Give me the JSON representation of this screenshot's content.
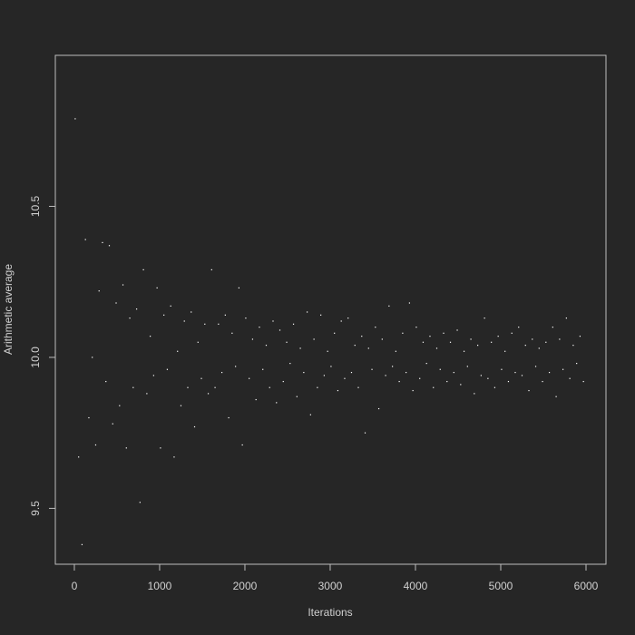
{
  "chart_data": {
    "type": "scatter",
    "xlabel": "Iterations",
    "ylabel": "Arithmetic average",
    "xlim": [
      -223,
      6234
    ],
    "ylim": [
      9.315,
      11.0
    ],
    "xticks": [
      0,
      1000,
      2000,
      3000,
      4000,
      5000,
      6000
    ],
    "yticks": [
      9.5,
      {
        "value": 10,
        "label": "10.0"
      },
      10.5
    ],
    "color": "#ffffff",
    "x": [
      10,
      50,
      90,
      130,
      170,
      210,
      250,
      290,
      330,
      370,
      410,
      450,
      490,
      530,
      570,
      610,
      650,
      690,
      730,
      770,
      810,
      850,
      890,
      930,
      970,
      1010,
      1050,
      1090,
      1130,
      1170,
      1210,
      1250,
      1290,
      1330,
      1370,
      1410,
      1450,
      1490,
      1530,
      1570,
      1610,
      1650,
      1690,
      1730,
      1770,
      1810,
      1850,
      1890,
      1930,
      1970,
      2010,
      2050,
      2090,
      2130,
      2170,
      2210,
      2250,
      2290,
      2330,
      2370,
      2410,
      2450,
      2490,
      2530,
      2570,
      2610,
      2650,
      2690,
      2730,
      2770,
      2810,
      2850,
      2890,
      2930,
      2970,
      3010,
      3050,
      3090,
      3130,
      3170,
      3210,
      3250,
      3290,
      3330,
      3370,
      3410,
      3450,
      3490,
      3530,
      3570,
      3610,
      3650,
      3690,
      3730,
      3770,
      3810,
      3850,
      3890,
      3930,
      3970,
      4010,
      4050,
      4090,
      4130,
      4170,
      4210,
      4250,
      4290,
      4330,
      4370,
      4410,
      4450,
      4490,
      4530,
      4570,
      4610,
      4650,
      4690,
      4730,
      4770,
      4810,
      4850,
      4890,
      4930,
      4970,
      5010,
      5050,
      5090,
      5130,
      5170,
      5210,
      5250,
      5290,
      5330,
      5370,
      5410,
      5450,
      5490,
      5530,
      5570,
      5610,
      5650,
      5690,
      5730,
      5770,
      5810,
      5850,
      5890,
      5930,
      5970
    ],
    "values": [
      10.79,
      9.67,
      9.38,
      10.39,
      9.8,
      10.0,
      9.71,
      10.22,
      10.38,
      9.92,
      10.37,
      9.78,
      10.18,
      9.84,
      10.24,
      9.7,
      10.13,
      9.9,
      10.16,
      9.52,
      10.29,
      9.88,
      10.07,
      9.94,
      10.23,
      9.7,
      10.14,
      9.96,
      10.17,
      9.67,
      10.02,
      9.84,
      10.12,
      9.9,
      10.15,
      9.77,
      10.05,
      9.93,
      10.11,
      9.88,
      10.29,
      9.9,
      10.11,
      9.95,
      10.14,
      9.8,
      10.08,
      9.97,
      10.23,
      9.71,
      10.13,
      9.93,
      10.06,
      9.86,
      10.1,
      9.96,
      10.04,
      9.9,
      10.12,
      9.85,
      10.09,
      9.92,
      10.05,
      9.98,
      10.11,
      9.87,
      10.03,
      9.95,
      10.15,
      9.81,
      10.06,
      9.9,
      10.14,
      9.94,
      10.02,
      9.97,
      10.08,
      9.89,
      10.12,
      9.93,
      10.13,
      9.95,
      10.04,
      9.9,
      10.07,
      9.75,
      10.03,
      9.96,
      10.1,
      9.83,
      10.06,
      9.94,
      10.17,
      9.97,
      10.02,
      9.92,
      10.08,
      9.95,
      10.18,
      9.89,
      10.1,
      9.93,
      10.05,
      9.98,
      10.07,
      9.9,
      10.03,
      9.96,
      10.08,
      9.92,
      10.05,
      9.95,
      10.09,
      9.91,
      10.02,
      9.97,
      10.06,
      9.88,
      10.04,
      9.94,
      10.13,
      9.93,
      10.05,
      9.9,
      10.07,
      9.96,
      10.02,
      9.92,
      10.08,
      9.95,
      10.1,
      9.94,
      10.04,
      9.89,
      10.06,
      9.97,
      10.03,
      9.92,
      10.05,
      9.95,
      10.1,
      9.87,
      10.06,
      9.96,
      10.13,
      9.93,
      10.04,
      9.98,
      10.07,
      9.92
    ]
  }
}
